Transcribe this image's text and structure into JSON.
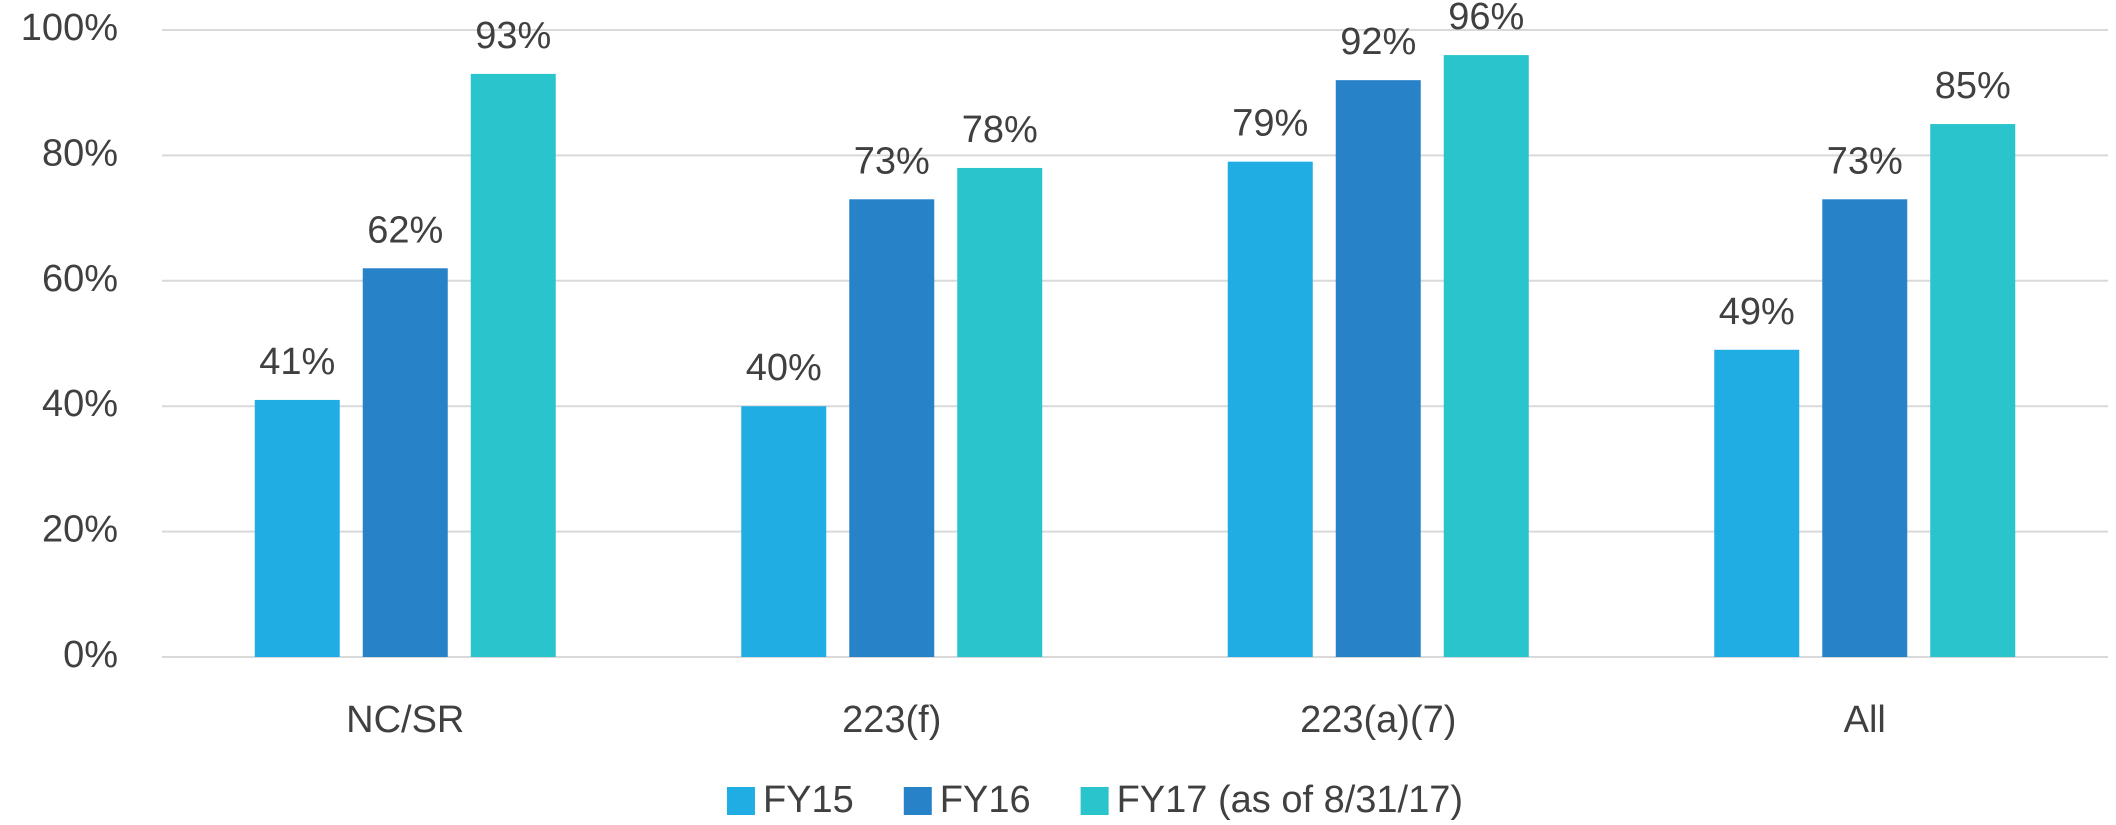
{
  "chart_data": {
    "type": "bar",
    "categories": [
      "NC/SR",
      "223(f)",
      "223(a)(7)",
      "All"
    ],
    "series": [
      {
        "name": "FY15",
        "color": "#1fade3",
        "values": [
          41,
          40,
          79,
          49
        ],
        "value_labels": [
          "41%",
          "40%",
          "79%",
          "49%"
        ]
      },
      {
        "name": "FY16",
        "color": "#2882c8",
        "values": [
          62,
          73,
          92,
          73
        ],
        "value_labels": [
          "62%",
          "73%",
          "92%",
          "73%"
        ]
      },
      {
        "name": "FY17 (as of 8/31/17)",
        "color": "#29c4cc",
        "values": [
          93,
          78,
          96,
          85
        ],
        "value_labels": [
          "93%",
          "78%",
          "96%",
          "85%"
        ]
      }
    ],
    "ylim": [
      0,
      100
    ],
    "yticks": [
      {
        "value": 0,
        "label": "0%"
      },
      {
        "value": 20,
        "label": "20%"
      },
      {
        "value": 40,
        "label": "40%"
      },
      {
        "value": 60,
        "label": "60%"
      },
      {
        "value": 80,
        "label": "80%"
      },
      {
        "value": 100,
        "label": "100%"
      }
    ],
    "grid": true,
    "legend": "bottom"
  }
}
